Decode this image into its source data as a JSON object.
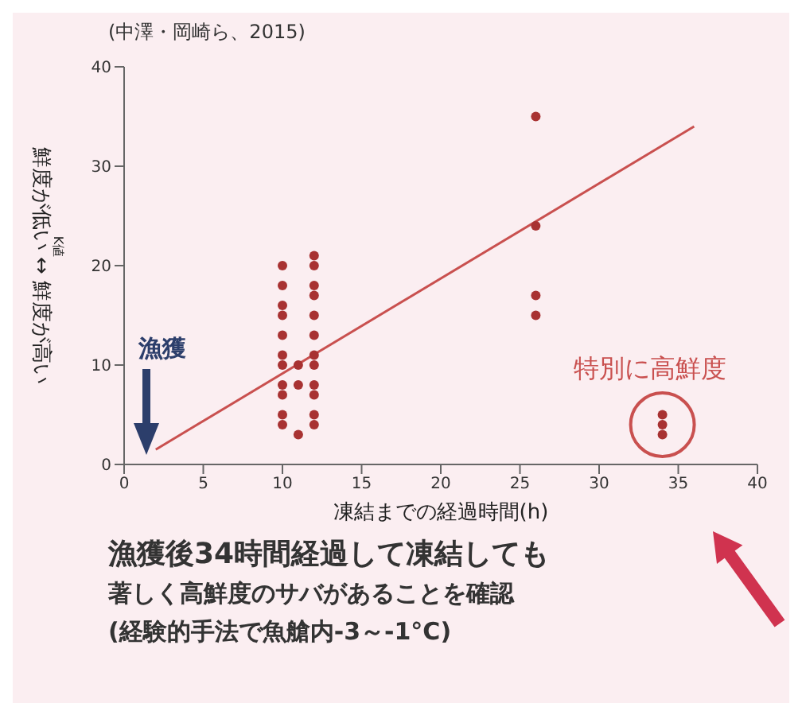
{
  "chart_data": {
    "type": "scatter",
    "xlabel": "凍結までの経過時間(h)",
    "ylabel": "鮮度が低い ↔ 鮮度が高い",
    "annotations": [
      "(中澤・岡崎ら、2015)",
      "K値",
      {
        "text": "特別に高鮮度",
        "x": 34,
        "y": 4
      },
      "漁獲",
      "漁獲後34時間経過して凍結しても",
      "著しく高鮮度のサバがあることを確認",
      "(経験的手法で魚艙内-3～-1°C)"
    ],
    "series": [
      {
        "color": "#a83232",
        "marker": "circle",
        "x": [
          34,
          34,
          34,
          26,
          26,
          26,
          26,
          12,
          12,
          12,
          12,
          12,
          12,
          12,
          12,
          12,
          12,
          12,
          12,
          11,
          11,
          11,
          10,
          10,
          10,
          10,
          10,
          10,
          10,
          10,
          10,
          10,
          10
        ],
        "values": [
          3,
          4,
          5,
          35,
          24,
          17,
          15,
          21,
          20,
          18,
          17,
          15,
          13,
          11,
          10,
          8,
          7,
          5,
          4,
          10,
          8,
          3,
          20,
          18,
          16,
          15,
          13,
          11,
          10,
          8,
          7,
          5,
          4
        ]
      },
      {
        "type": "line",
        "color": "#c9504f",
        "x": [
          2,
          36
        ],
        "values": [
          1.5,
          34
        ]
      }
    ],
    "xlim": [
      0,
      40
    ],
    "xticks": [
      0,
      5,
      10,
      15,
      20,
      25,
      30,
      35,
      40
    ],
    "ylim": [
      0,
      40
    ],
    "yticks": [
      0,
      10,
      20,
      30,
      40
    ],
    "grid": false
  }
}
